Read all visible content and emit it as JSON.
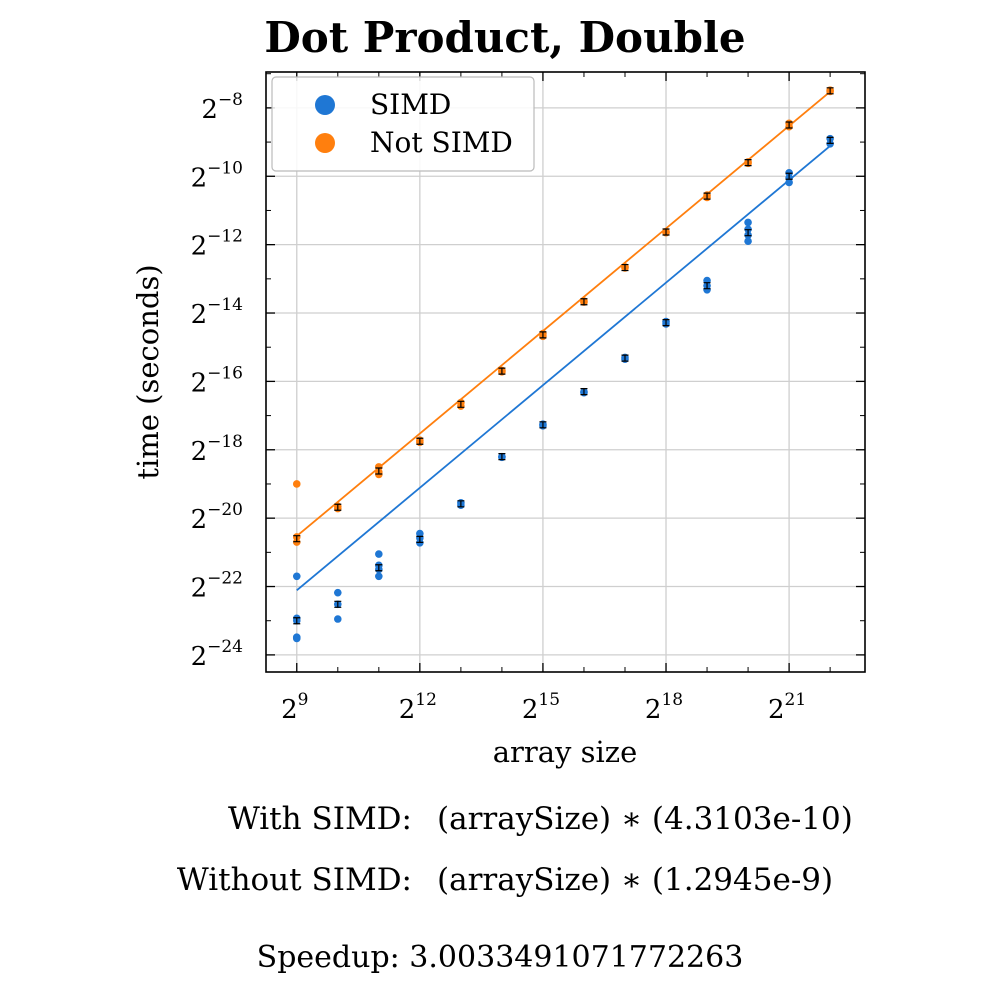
{
  "chart_data": {
    "type": "scatter",
    "title": "Dot Product, Double",
    "xlabel": "array size",
    "ylabel": "time (seconds)",
    "x_scale": "log2",
    "y_scale": "log2",
    "xlim_log2": [
      8.25,
      22.85
    ],
    "ylim_log2": [
      -24.5,
      -6.95
    ],
    "x_ticks": [
      {
        "base": "2",
        "exp": "9",
        "value": 9
      },
      {
        "base": "2",
        "exp": "12",
        "value": 12
      },
      {
        "base": "2",
        "exp": "15",
        "value": 15
      },
      {
        "base": "2",
        "exp": "18",
        "value": 18
      },
      {
        "base": "2",
        "exp": "21",
        "value": 21
      }
    ],
    "y_ticks": [
      {
        "base": "2",
        "exp": "−8",
        "value": -8
      },
      {
        "base": "2",
        "exp": "−10",
        "value": -10
      },
      {
        "base": "2",
        "exp": "−12",
        "value": -12
      },
      {
        "base": "2",
        "exp": "−14",
        "value": -14
      },
      {
        "base": "2",
        "exp": "−16",
        "value": -16
      },
      {
        "base": "2",
        "exp": "−18",
        "value": -18
      },
      {
        "base": "2",
        "exp": "−20",
        "value": -20
      },
      {
        "base": "2",
        "exp": "−22",
        "value": -22
      },
      {
        "base": "2",
        "exp": "−24",
        "value": -24
      }
    ],
    "grid": true,
    "legend_position": "top-left",
    "series": [
      {
        "name": "SIMD",
        "color": "#1f77d4",
        "fit_coefficient": 4.3103e-10,
        "points_log2": [
          [
            9,
            -22.93
          ],
          [
            9,
            -23.0
          ],
          [
            9,
            -23.48
          ],
          [
            9,
            -23.52
          ],
          [
            9,
            -21.7
          ],
          [
            10,
            -22.18
          ],
          [
            10,
            -22.52
          ],
          [
            10,
            -22.95
          ],
          [
            11,
            -21.05
          ],
          [
            11,
            -21.38
          ],
          [
            11,
            -21.5
          ],
          [
            11,
            -21.7
          ],
          [
            12,
            -20.45
          ],
          [
            12,
            -20.58
          ],
          [
            12,
            -20.72
          ],
          [
            13,
            -19.55
          ],
          [
            13,
            -19.62
          ],
          [
            14,
            -18.2
          ],
          [
            14,
            -18.22
          ],
          [
            15,
            -17.25
          ],
          [
            15,
            -17.3
          ],
          [
            16,
            -16.3
          ],
          [
            16,
            -16.33
          ],
          [
            17,
            -15.3
          ],
          [
            17,
            -15.35
          ],
          [
            18,
            -14.25
          ],
          [
            18,
            -14.32
          ],
          [
            19,
            -13.05
          ],
          [
            19,
            -13.2
          ],
          [
            19,
            -13.32
          ],
          [
            20,
            -11.35
          ],
          [
            20,
            -11.55
          ],
          [
            20,
            -11.72
          ],
          [
            20,
            -11.9
          ],
          [
            21,
            -9.9
          ],
          [
            21,
            -10.05
          ],
          [
            21,
            -10.18
          ],
          [
            22,
            -8.9
          ],
          [
            22,
            -9.05
          ]
        ],
        "means_log2": [
          [
            9,
            -23.0
          ],
          [
            10,
            -22.52
          ],
          [
            11,
            -21.45
          ],
          [
            12,
            -20.62
          ],
          [
            13,
            -19.58
          ],
          [
            14,
            -18.2
          ],
          [
            15,
            -17.27
          ],
          [
            16,
            -16.3
          ],
          [
            17,
            -15.32
          ],
          [
            18,
            -14.28
          ],
          [
            19,
            -13.2
          ],
          [
            20,
            -11.65
          ],
          [
            21,
            -10.0
          ],
          [
            22,
            -8.95
          ]
        ]
      },
      {
        "name": "Not SIMD",
        "color": "#ff7f0e",
        "fit_coefficient": 1.2945e-09,
        "points_log2": [
          [
            9,
            -19.0
          ],
          [
            9,
            -20.55
          ],
          [
            9,
            -20.7
          ],
          [
            10,
            -19.65
          ],
          [
            10,
            -19.72
          ],
          [
            11,
            -18.5
          ],
          [
            11,
            -18.65
          ],
          [
            11,
            -18.72
          ],
          [
            12,
            -17.72
          ],
          [
            12,
            -17.78
          ],
          [
            13,
            -16.62
          ],
          [
            13,
            -16.72
          ],
          [
            14,
            -15.68
          ],
          [
            14,
            -15.72
          ],
          [
            15,
            -14.6
          ],
          [
            15,
            -14.68
          ],
          [
            16,
            -13.65
          ],
          [
            16,
            -13.68
          ],
          [
            17,
            -12.65
          ],
          [
            17,
            -12.68
          ],
          [
            18,
            -11.62
          ],
          [
            18,
            -11.65
          ],
          [
            19,
            -10.55
          ],
          [
            19,
            -10.62
          ],
          [
            20,
            -9.58
          ],
          [
            20,
            -9.62
          ],
          [
            21,
            -8.45
          ],
          [
            21,
            -8.55
          ],
          [
            22,
            -7.48
          ],
          [
            22,
            -7.52
          ]
        ],
        "means_log2": [
          [
            9,
            -20.6
          ],
          [
            10,
            -19.68
          ],
          [
            11,
            -18.62
          ],
          [
            12,
            -17.75
          ],
          [
            13,
            -16.67
          ],
          [
            14,
            -15.7
          ],
          [
            15,
            -14.64
          ],
          [
            16,
            -13.67
          ],
          [
            17,
            -12.67
          ],
          [
            18,
            -11.63
          ],
          [
            19,
            -10.58
          ],
          [
            20,
            -9.6
          ],
          [
            21,
            -8.5
          ],
          [
            22,
            -7.5
          ]
        ]
      }
    ]
  },
  "formulas": [
    {
      "label": "With SIMD:",
      "expr": "(arraySize) ∗ (4.3103e-10)"
    },
    {
      "label": "Without SIMD:",
      "expr": "(arraySize) ∗ (1.2945e-9)"
    }
  ],
  "speedup": "Speedup: 3.0033491071772263"
}
